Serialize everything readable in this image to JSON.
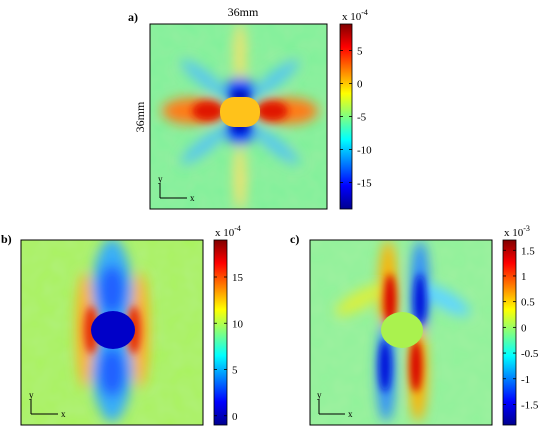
{
  "colormap": [
    "#00008f",
    "#0000ff",
    "#00ffff",
    "#ffff00",
    "#ff0000",
    "#800000"
  ],
  "chart_data": [
    {
      "type": "heatmap",
      "panel_label": "a)",
      "title": "36mm",
      "ylabel": "36mm",
      "axis_arrow_y": "y",
      "axis_arrow_x": "x",
      "field": "strain-map-hole-exx",
      "colorbar": {
        "exponent": "x 10",
        "power": "-4",
        "range": [
          -19,
          9
        ],
        "ticks": [
          {
            "value": 5,
            "label": "5"
          },
          {
            "value": 0,
            "label": "0"
          },
          {
            "value": -5,
            "label": "-5"
          },
          {
            "value": -10,
            "label": "-10"
          },
          {
            "value": -15,
            "label": "-15"
          }
        ]
      }
    },
    {
      "type": "heatmap",
      "panel_label": "b)",
      "axis_arrow_y": "y",
      "axis_arrow_x": "x",
      "field": "strain-map-hole-eyy",
      "colorbar": {
        "exponent": "x 10",
        "power": "-4",
        "range": [
          -1,
          19
        ],
        "ticks": [
          {
            "value": 15,
            "label": "15"
          },
          {
            "value": 10,
            "label": "10"
          },
          {
            "value": 5,
            "label": "5"
          },
          {
            "value": 0,
            "label": "0"
          }
        ]
      }
    },
    {
      "type": "heatmap",
      "panel_label": "c)",
      "axis_arrow_y": "y",
      "axis_arrow_x": "x",
      "field": "strain-map-hole-exy",
      "colorbar": {
        "exponent": "x 10",
        "power": "-3",
        "range": [
          -1.9,
          1.7
        ],
        "ticks": [
          {
            "value": 1.5,
            "label": "1.5"
          },
          {
            "value": 1,
            "label": "1"
          },
          {
            "value": 0.5,
            "label": "0.5"
          },
          {
            "value": 0,
            "label": "0"
          },
          {
            "value": -0.5,
            "label": "-0.5"
          },
          {
            "value": -1,
            "label": "-1"
          },
          {
            "value": -1.5,
            "label": "-1.5"
          }
        ]
      }
    }
  ]
}
